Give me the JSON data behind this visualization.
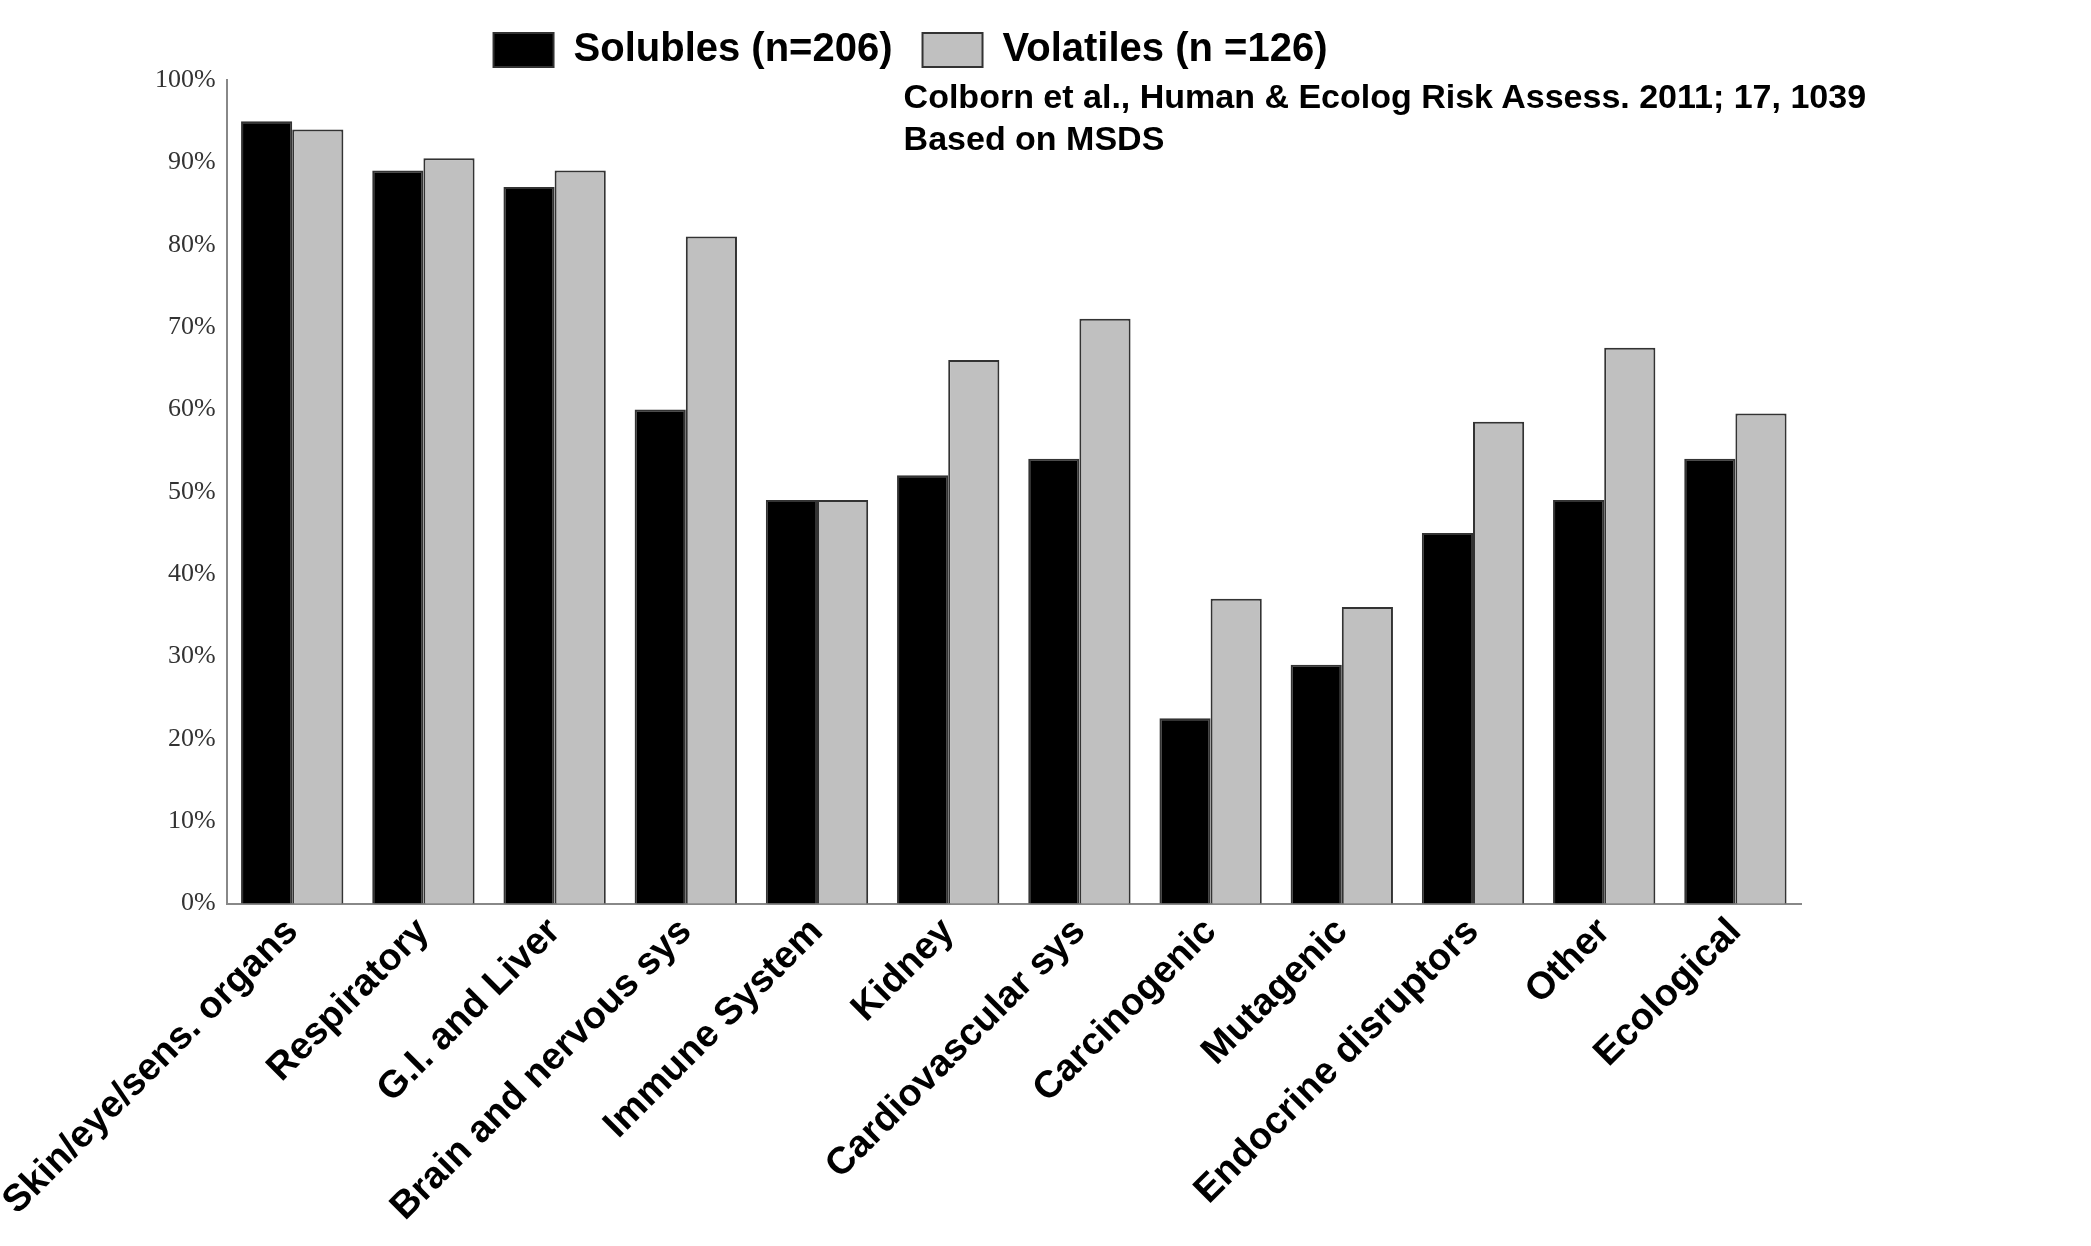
{
  "chart_data": {
    "type": "bar",
    "categories": [
      "Skin/eye/sens. organs",
      "Respiratory",
      "G.I. and Liver",
      "Brain and nervous sys",
      "Immune System",
      "Kidney",
      "Cardiovascular sys",
      "Carcinogenic",
      "Mutagenic",
      "Endocrine disruptors",
      "Other",
      "Ecological"
    ],
    "series": [
      {
        "name": "Solubles (n=206)",
        "color": "#000000",
        "values": [
          95,
          89,
          87,
          60,
          49,
          52,
          54,
          22.5,
          29,
          45,
          49,
          54
        ]
      },
      {
        "name": "Volatiles (n =126)",
        "color": "#c0c0c0",
        "values": [
          94,
          90.5,
          89,
          81,
          49,
          66,
          71,
          37,
          36,
          58.5,
          67.5,
          59.5
        ]
      }
    ],
    "ylim": [
      0,
      100
    ],
    "yticks": [
      {
        "value": 0,
        "label": "0%"
      },
      {
        "value": 10,
        "label": "10%"
      },
      {
        "value": 20,
        "label": "20%"
      },
      {
        "value": 30,
        "label": "30%"
      },
      {
        "value": 40,
        "label": "40%"
      },
      {
        "value": 50,
        "label": "50%"
      },
      {
        "value": 60,
        "label": "60%"
      },
      {
        "value": 70,
        "label": "70%"
      },
      {
        "value": 80,
        "label": "80%"
      },
      {
        "value": 90,
        "label": "90%"
      },
      {
        "value": 100,
        "label": "100%"
      }
    ],
    "grid": false,
    "legend": "top",
    "annotations": [
      "Colborn et al., Human & Ecolog Risk Assess. 2011; 17, 1039",
      "Based on MSDS"
    ]
  }
}
